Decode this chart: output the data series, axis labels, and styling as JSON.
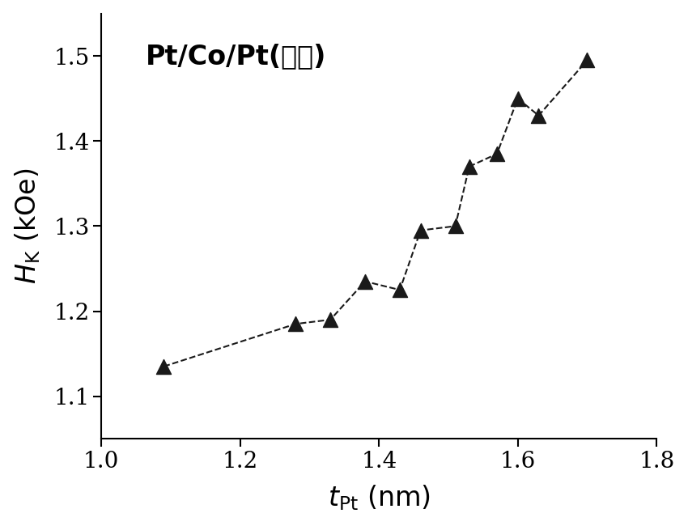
{
  "x": [
    1.09,
    1.28,
    1.33,
    1.38,
    1.43,
    1.46,
    1.51,
    1.53,
    1.57,
    1.6,
    1.63,
    1.7
  ],
  "y": [
    1.135,
    1.185,
    1.19,
    1.235,
    1.225,
    1.295,
    1.3,
    1.37,
    1.385,
    1.45,
    1.43,
    1.495
  ],
  "xlim": [
    1.0,
    1.8
  ],
  "ylim": [
    1.05,
    1.55
  ],
  "xticks": [
    1.0,
    1.2,
    1.4,
    1.6,
    1.8
  ],
  "yticks": [
    1.1,
    1.2,
    1.3,
    1.4,
    1.5
  ],
  "label_text": "Pt/Co/Pt(楷形)",
  "marker_color": "#1a1a1a",
  "line_color": "#1a1a1a",
  "background_color": "#ffffff",
  "marker_size": 13,
  "line_width": 1.5,
  "tick_fontsize": 20,
  "label_fontsize": 24,
  "annotation_fontsize": 24
}
